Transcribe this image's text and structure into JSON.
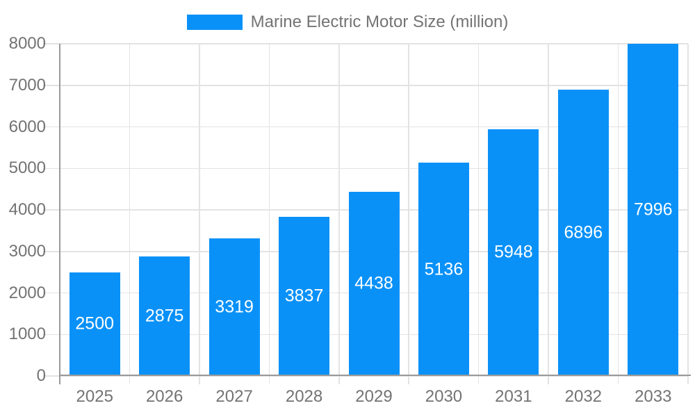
{
  "legend": {
    "label": "Marine Electric Motor Size (million)"
  },
  "chart_data": {
    "type": "bar",
    "title": "Marine Electric Motor Size (million)",
    "categories": [
      "2025",
      "2026",
      "2027",
      "2028",
      "2029",
      "2030",
      "2031",
      "2032",
      "2033"
    ],
    "series": [
      {
        "name": "Marine Electric Motor Size (million)",
        "values": [
          2500,
          2875,
          3319,
          3837,
          4438,
          5136,
          5948,
          6896,
          7996
        ]
      }
    ],
    "bar_labels": [
      "2500",
      "2875",
      "3319",
      "3837",
      "4438",
      "5136",
      "5948",
      "6896",
      "7996"
    ],
    "xlabel": "",
    "ylabel": "",
    "ylim": [
      0,
      8000
    ],
    "ytick_interval": 1000,
    "ytick_labels": [
      "0",
      "1000",
      "2000",
      "3000",
      "4000",
      "5000",
      "6000",
      "7000",
      "8000"
    ],
    "grid": true,
    "legend_position": "top-center",
    "colors": {
      "bar": "#0991F8",
      "bar_label": "#FFFFFF",
      "axis_text": "#737373",
      "grid_line": "#E3E3E3",
      "axis_line": "#999999",
      "background": "#FFFFFF"
    }
  }
}
